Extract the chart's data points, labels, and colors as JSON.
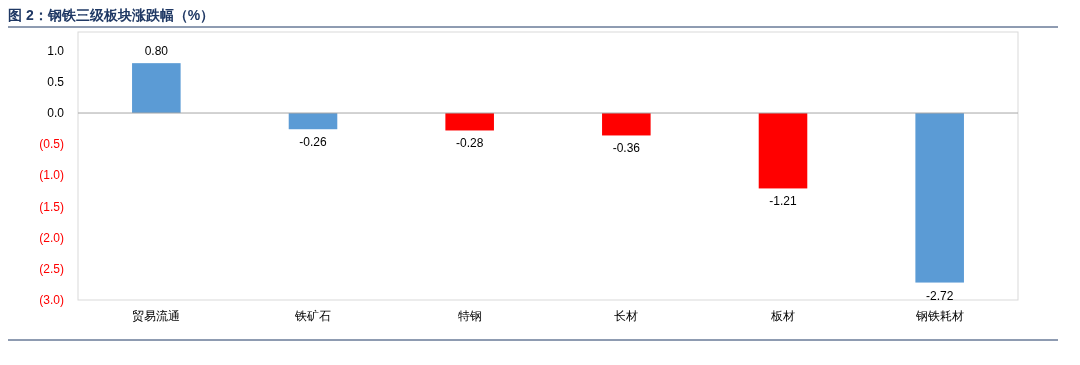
{
  "chart_data": {
    "type": "bar",
    "title": "图 2：钢铁三级板块涨跌幅（%）",
    "categories": [
      "贸易流通",
      "铁矿石",
      "特钢",
      "长材",
      "板材",
      "钢铁耗材"
    ],
    "values": [
      0.8,
      -0.26,
      -0.28,
      -0.36,
      -1.21,
      -2.72
    ],
    "colors": [
      "#5b9bd5",
      "#5b9bd5",
      "#ff0000",
      "#ff0000",
      "#ff0000",
      "#5b9bd5"
    ],
    "value_labels": [
      "0.80",
      "-0.26",
      "-0.28",
      "-0.36",
      "-1.21",
      "-2.72"
    ],
    "ylim": [
      -3.0,
      1.3
    ],
    "yticks": [
      {
        "value": 1.0,
        "label": "1.0"
      },
      {
        "value": 0.5,
        "label": "0.5"
      },
      {
        "value": 0.0,
        "label": "0.0"
      },
      {
        "value": -0.5,
        "label": "(0.5)"
      },
      {
        "value": -1.0,
        "label": "(1.0)"
      },
      {
        "value": -1.5,
        "label": "(1.5)"
      },
      {
        "value": -2.0,
        "label": "(2.0)"
      },
      {
        "value": -2.5,
        "label": "(2.5)"
      },
      {
        "value": -3.0,
        "label": "(3.0)"
      }
    ],
    "ref_lines": [
      {
        "axis": "y",
        "value": 0,
        "label": null,
        "color": "#a6a6a6"
      }
    ]
  }
}
